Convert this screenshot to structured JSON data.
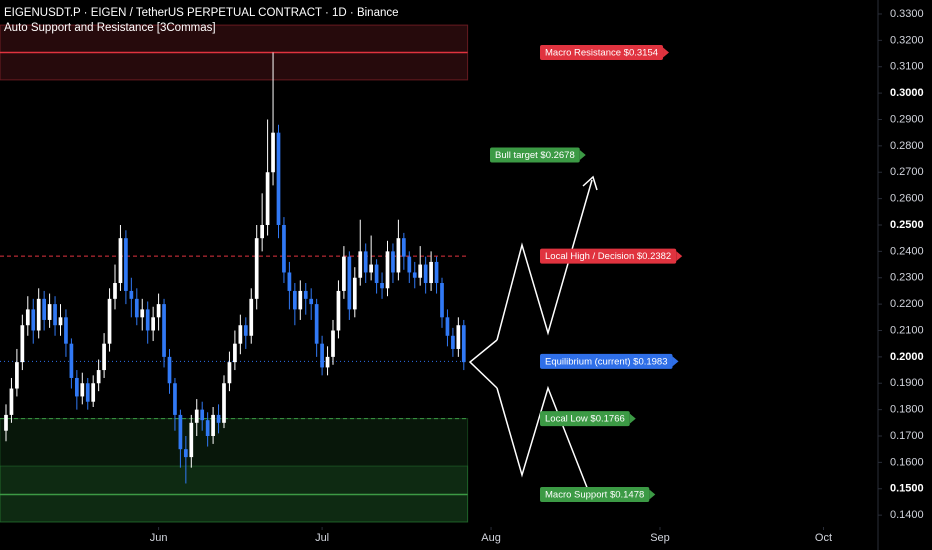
{
  "chart_data": {
    "type": "candlestick",
    "title": "EIGENUSDT.P · EIGEN / TetherUS PERPETUAL CONTRACT · 1D · Binance",
    "subtitle": "Auto Support and Resistance [3Commas]",
    "up_color": "#ffffff",
    "down_color": "#3179f5",
    "open": [
      0.172,
      0.178,
      0.188,
      0.198,
      0.212,
      0.218,
      0.21,
      0.222,
      0.214,
      0.22,
      0.212,
      0.215,
      0.205,
      0.192,
      0.185,
      0.19,
      0.183,
      0.19,
      0.195,
      0.205,
      0.222,
      0.228,
      0.245,
      0.225,
      0.222,
      0.215,
      0.218,
      0.21,
      0.215,
      0.22,
      0.2,
      0.19,
      0.178,
      0.165,
      0.162,
      0.175,
      0.18,
      0.176,
      0.17,
      0.178,
      0.175,
      0.19,
      0.198,
      0.205,
      0.212,
      0.208,
      0.222,
      0.245,
      0.25,
      0.27,
      0.285,
      0.25,
      0.232,
      0.225,
      0.218,
      0.225,
      0.222,
      0.22,
      0.205,
      0.196,
      0.2,
      0.21,
      0.225,
      0.238,
      0.218,
      0.23,
      0.24,
      0.232,
      0.235,
      0.228,
      0.226,
      0.24,
      0.232,
      0.245,
      0.238,
      0.232,
      0.23,
      0.235,
      0.228,
      0.236,
      0.228,
      0.215,
      0.208,
      0.203,
      0.212
    ],
    "high": [
      0.182,
      0.192,
      0.203,
      0.216,
      0.223,
      0.222,
      0.226,
      0.225,
      0.224,
      0.223,
      0.22,
      0.218,
      0.207,
      0.195,
      0.194,
      0.192,
      0.193,
      0.199,
      0.209,
      0.226,
      0.235,
      0.25,
      0.248,
      0.23,
      0.226,
      0.222,
      0.221,
      0.219,
      0.224,
      0.222,
      0.203,
      0.192,
      0.18,
      0.17,
      0.178,
      0.184,
      0.183,
      0.179,
      0.181,
      0.182,
      0.193,
      0.202,
      0.21,
      0.216,
      0.215,
      0.226,
      0.25,
      0.262,
      0.29,
      0.3154,
      0.288,
      0.253,
      0.236,
      0.228,
      0.229,
      0.228,
      0.226,
      0.222,
      0.208,
      0.204,
      0.214,
      0.229,
      0.242,
      0.24,
      0.234,
      0.252,
      0.243,
      0.246,
      0.237,
      0.232,
      0.244,
      0.243,
      0.252,
      0.247,
      0.24,
      0.236,
      0.242,
      0.238,
      0.24,
      0.238,
      0.23,
      0.218,
      0.211,
      0.215,
      0.214
    ],
    "low": [
      0.168,
      0.175,
      0.185,
      0.195,
      0.208,
      0.205,
      0.207,
      0.21,
      0.211,
      0.208,
      0.208,
      0.2,
      0.188,
      0.18,
      0.182,
      0.18,
      0.181,
      0.187,
      0.192,
      0.202,
      0.218,
      0.225,
      0.22,
      0.215,
      0.212,
      0.21,
      0.205,
      0.206,
      0.21,
      0.196,
      0.186,
      0.172,
      0.158,
      0.152,
      0.158,
      0.17,
      0.172,
      0.166,
      0.167,
      0.171,
      0.173,
      0.187,
      0.195,
      0.201,
      0.203,
      0.205,
      0.218,
      0.24,
      0.246,
      0.265,
      0.245,
      0.228,
      0.218,
      0.212,
      0.214,
      0.216,
      0.214,
      0.2,
      0.193,
      0.193,
      0.197,
      0.207,
      0.222,
      0.214,
      0.215,
      0.227,
      0.228,
      0.229,
      0.224,
      0.222,
      0.223,
      0.228,
      0.229,
      0.233,
      0.228,
      0.226,
      0.227,
      0.224,
      0.225,
      0.224,
      0.211,
      0.204,
      0.2,
      0.2,
      0.195
    ],
    "close": [
      0.178,
      0.188,
      0.198,
      0.212,
      0.218,
      0.21,
      0.222,
      0.214,
      0.22,
      0.212,
      0.215,
      0.205,
      0.192,
      0.185,
      0.19,
      0.183,
      0.19,
      0.195,
      0.205,
      0.222,
      0.228,
      0.245,
      0.225,
      0.222,
      0.215,
      0.218,
      0.21,
      0.215,
      0.22,
      0.2,
      0.19,
      0.178,
      0.165,
      0.162,
      0.175,
      0.18,
      0.176,
      0.17,
      0.178,
      0.175,
      0.19,
      0.198,
      0.205,
      0.212,
      0.208,
      0.222,
      0.245,
      0.25,
      0.27,
      0.285,
      0.25,
      0.232,
      0.225,
      0.218,
      0.225,
      0.222,
      0.22,
      0.205,
      0.196,
      0.2,
      0.21,
      0.225,
      0.238,
      0.218,
      0.23,
      0.24,
      0.232,
      0.235,
      0.228,
      0.226,
      0.24,
      0.232,
      0.245,
      0.238,
      0.232,
      0.23,
      0.235,
      0.228,
      0.236,
      0.228,
      0.215,
      0.208,
      0.203,
      0.212,
      0.198
    ],
    "xlim": [
      -1.1,
      160
    ],
    "xticks": [
      {
        "value": 28,
        "label": "Jun"
      },
      {
        "value": 58,
        "label": "Jul"
      },
      {
        "value": 89,
        "label": "Aug"
      },
      {
        "value": 120,
        "label": "Sep"
      },
      {
        "value": 150,
        "label": "Oct"
      }
    ],
    "ylim": [
      0.1355,
      0.3353
    ],
    "yticks": [
      {
        "value": 0.33,
        "label": "0.3300"
      },
      {
        "value": 0.32,
        "label": "0.3200"
      },
      {
        "value": 0.31,
        "label": "0.3100"
      },
      {
        "value": 0.3,
        "label": "0.3000",
        "bold": true
      },
      {
        "value": 0.29,
        "label": "0.2900"
      },
      {
        "value": 0.28,
        "label": "0.2800"
      },
      {
        "value": 0.27,
        "label": "0.2700"
      },
      {
        "value": 0.26,
        "label": "0.2600"
      },
      {
        "value": 0.25,
        "label": "0.2500",
        "bold": true
      },
      {
        "value": 0.24,
        "label": "0.2400"
      },
      {
        "value": 0.23,
        "label": "0.2300"
      },
      {
        "value": 0.22,
        "label": "0.2200"
      },
      {
        "value": 0.21,
        "label": "0.2100"
      },
      {
        "value": 0.2,
        "label": "0.2000",
        "bold": true
      },
      {
        "value": 0.19,
        "label": "0.1900"
      },
      {
        "value": 0.18,
        "label": "0.1800"
      },
      {
        "value": 0.17,
        "label": "0.1700"
      },
      {
        "value": 0.16,
        "label": "0.1600"
      },
      {
        "value": 0.15,
        "label": "0.1500",
        "bold": true
      },
      {
        "value": 0.14,
        "label": "0.1400"
      }
    ],
    "zones": [
      {
        "top": 0.3258,
        "bottom": 0.305,
        "color": "#e03a45"
      },
      {
        "top": 0.1766,
        "bottom": 0.1374,
        "color": "#2e8b3a"
      },
      {
        "top": 0.1586,
        "bottom": 0.1374,
        "color": "#2e8b3a"
      }
    ],
    "levels": [
      {
        "label": "Macro Resistance $0.3154",
        "value": 0.3154,
        "color": "#e0333f",
        "line": "solid"
      },
      {
        "label": "Bull target $0.2678",
        "value": 0.2678,
        "color": "#3c9a45",
        "line": "none"
      },
      {
        "label": "Local High / Decision $0.2382",
        "value": 0.2382,
        "color": "#e0333f",
        "line": "dashed"
      },
      {
        "label": "Equilibrium (current) $0.1983",
        "value": 0.1983,
        "color": "#2f6fe8",
        "line": "dotted"
      },
      {
        "label": "Local Low $0.1766",
        "value": 0.1766,
        "color": "#3c9a45",
        "line": "dashed"
      },
      {
        "label": "Macro Support $0.1478",
        "value": 0.1478,
        "color": "#3c9a45",
        "line": "solid"
      }
    ]
  }
}
